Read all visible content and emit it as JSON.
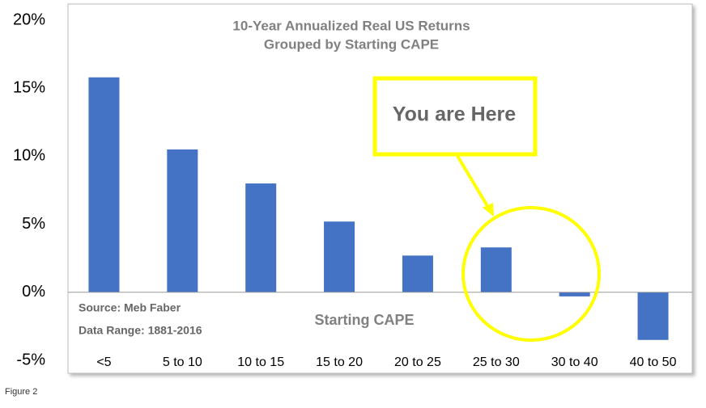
{
  "chart_data": {
    "type": "bar",
    "title": "10-Year Annualized Real US Returns",
    "subtitle": "Grouped by Starting CAPE",
    "x_label": "Starting CAPE",
    "categories": [
      "<5",
      "5 to 10",
      "10 to 15",
      "15 to 20",
      "20 to 25",
      "25 to 30",
      "30 to 40",
      "40 to 50"
    ],
    "values": [
      15.8,
      10.5,
      8.0,
      5.2,
      2.7,
      3.3,
      -0.3,
      -3.5
    ],
    "color": "#4472c4",
    "ylim": [
      -5,
      20
    ],
    "yticks": [
      {
        "value": -5,
        "label": "-5%"
      },
      {
        "value": 0,
        "label": "0%"
      },
      {
        "value": 5,
        "label": "5%"
      },
      {
        "value": 10,
        "label": "10%"
      },
      {
        "value": 15,
        "label": "15%"
      },
      {
        "value": 20,
        "label": "20%"
      }
    ],
    "annotations": [
      "Source: Meb Faber",
      "Data Range: 1881-2016",
      "You are Here"
    ],
    "caption": "Figure 2"
  }
}
